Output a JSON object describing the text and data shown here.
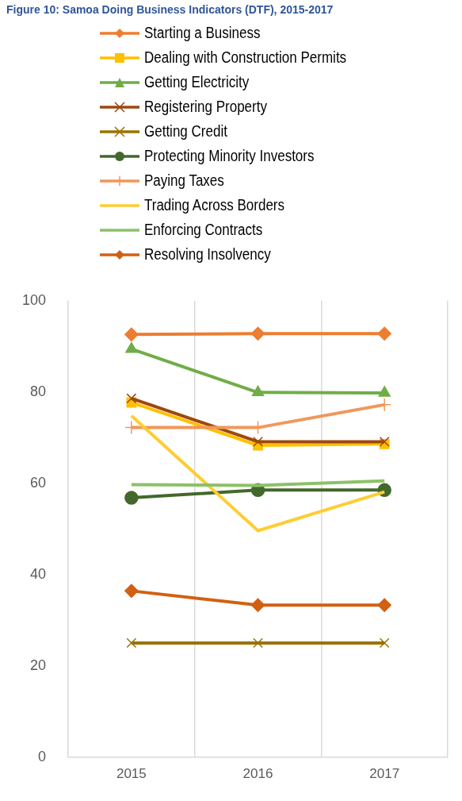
{
  "chart_data": {
    "type": "line",
    "title": "Figure 10: Samoa Doing Business Indicators (DTF), 2015-2017",
    "categories": [
      "2015",
      "2016",
      "2017"
    ],
    "ylim": [
      0,
      100
    ],
    "yticks": [
      0,
      20,
      40,
      60,
      80,
      100
    ],
    "grid": "x",
    "legend": "top",
    "line_style": "solid",
    "series": [
      {
        "name": "Starting a Business",
        "color": "#ed7d31",
        "marker": "diamond",
        "values": [
          92.6,
          92.8,
          92.8
        ]
      },
      {
        "name": "Dealing with Construction Permits",
        "color": "#ffc000",
        "marker": "square",
        "values": [
          77.7,
          68.3,
          68.6
        ]
      },
      {
        "name": "Getting Electricity",
        "color": "#70ad47",
        "marker": "triangle",
        "values": [
          89.4,
          79.9,
          79.8
        ]
      },
      {
        "name": "Registering Property",
        "color": "#9e480e",
        "marker": "cross",
        "values": [
          78.6,
          69.1,
          69.1
        ]
      },
      {
        "name": "Getting Credit",
        "color": "#997300",
        "marker": "cross",
        "values": [
          25,
          25,
          25
        ]
      },
      {
        "name": "Protecting Minority Investors",
        "color": "#43682b",
        "marker": "circle",
        "values": [
          56.8,
          58.5,
          58.5
        ]
      },
      {
        "name": "Paying Taxes",
        "color": "#f1975a",
        "marker": "plus",
        "values": [
          72.2,
          72.2,
          77.2
        ]
      },
      {
        "name": "Trading Across Borders",
        "color": "#ffcd33",
        "marker": "none",
        "values": [
          74.8,
          49.6,
          58.1
        ]
      },
      {
        "name": "Enforcing Contracts",
        "color": "#8cc168",
        "marker": "none",
        "values": [
          59.7,
          59.5,
          60.5
        ]
      },
      {
        "name": "Resolving Insolvency",
        "color": "#d26012",
        "marker": "diamond",
        "values": [
          36.4,
          33.3,
          33.3
        ]
      }
    ]
  }
}
